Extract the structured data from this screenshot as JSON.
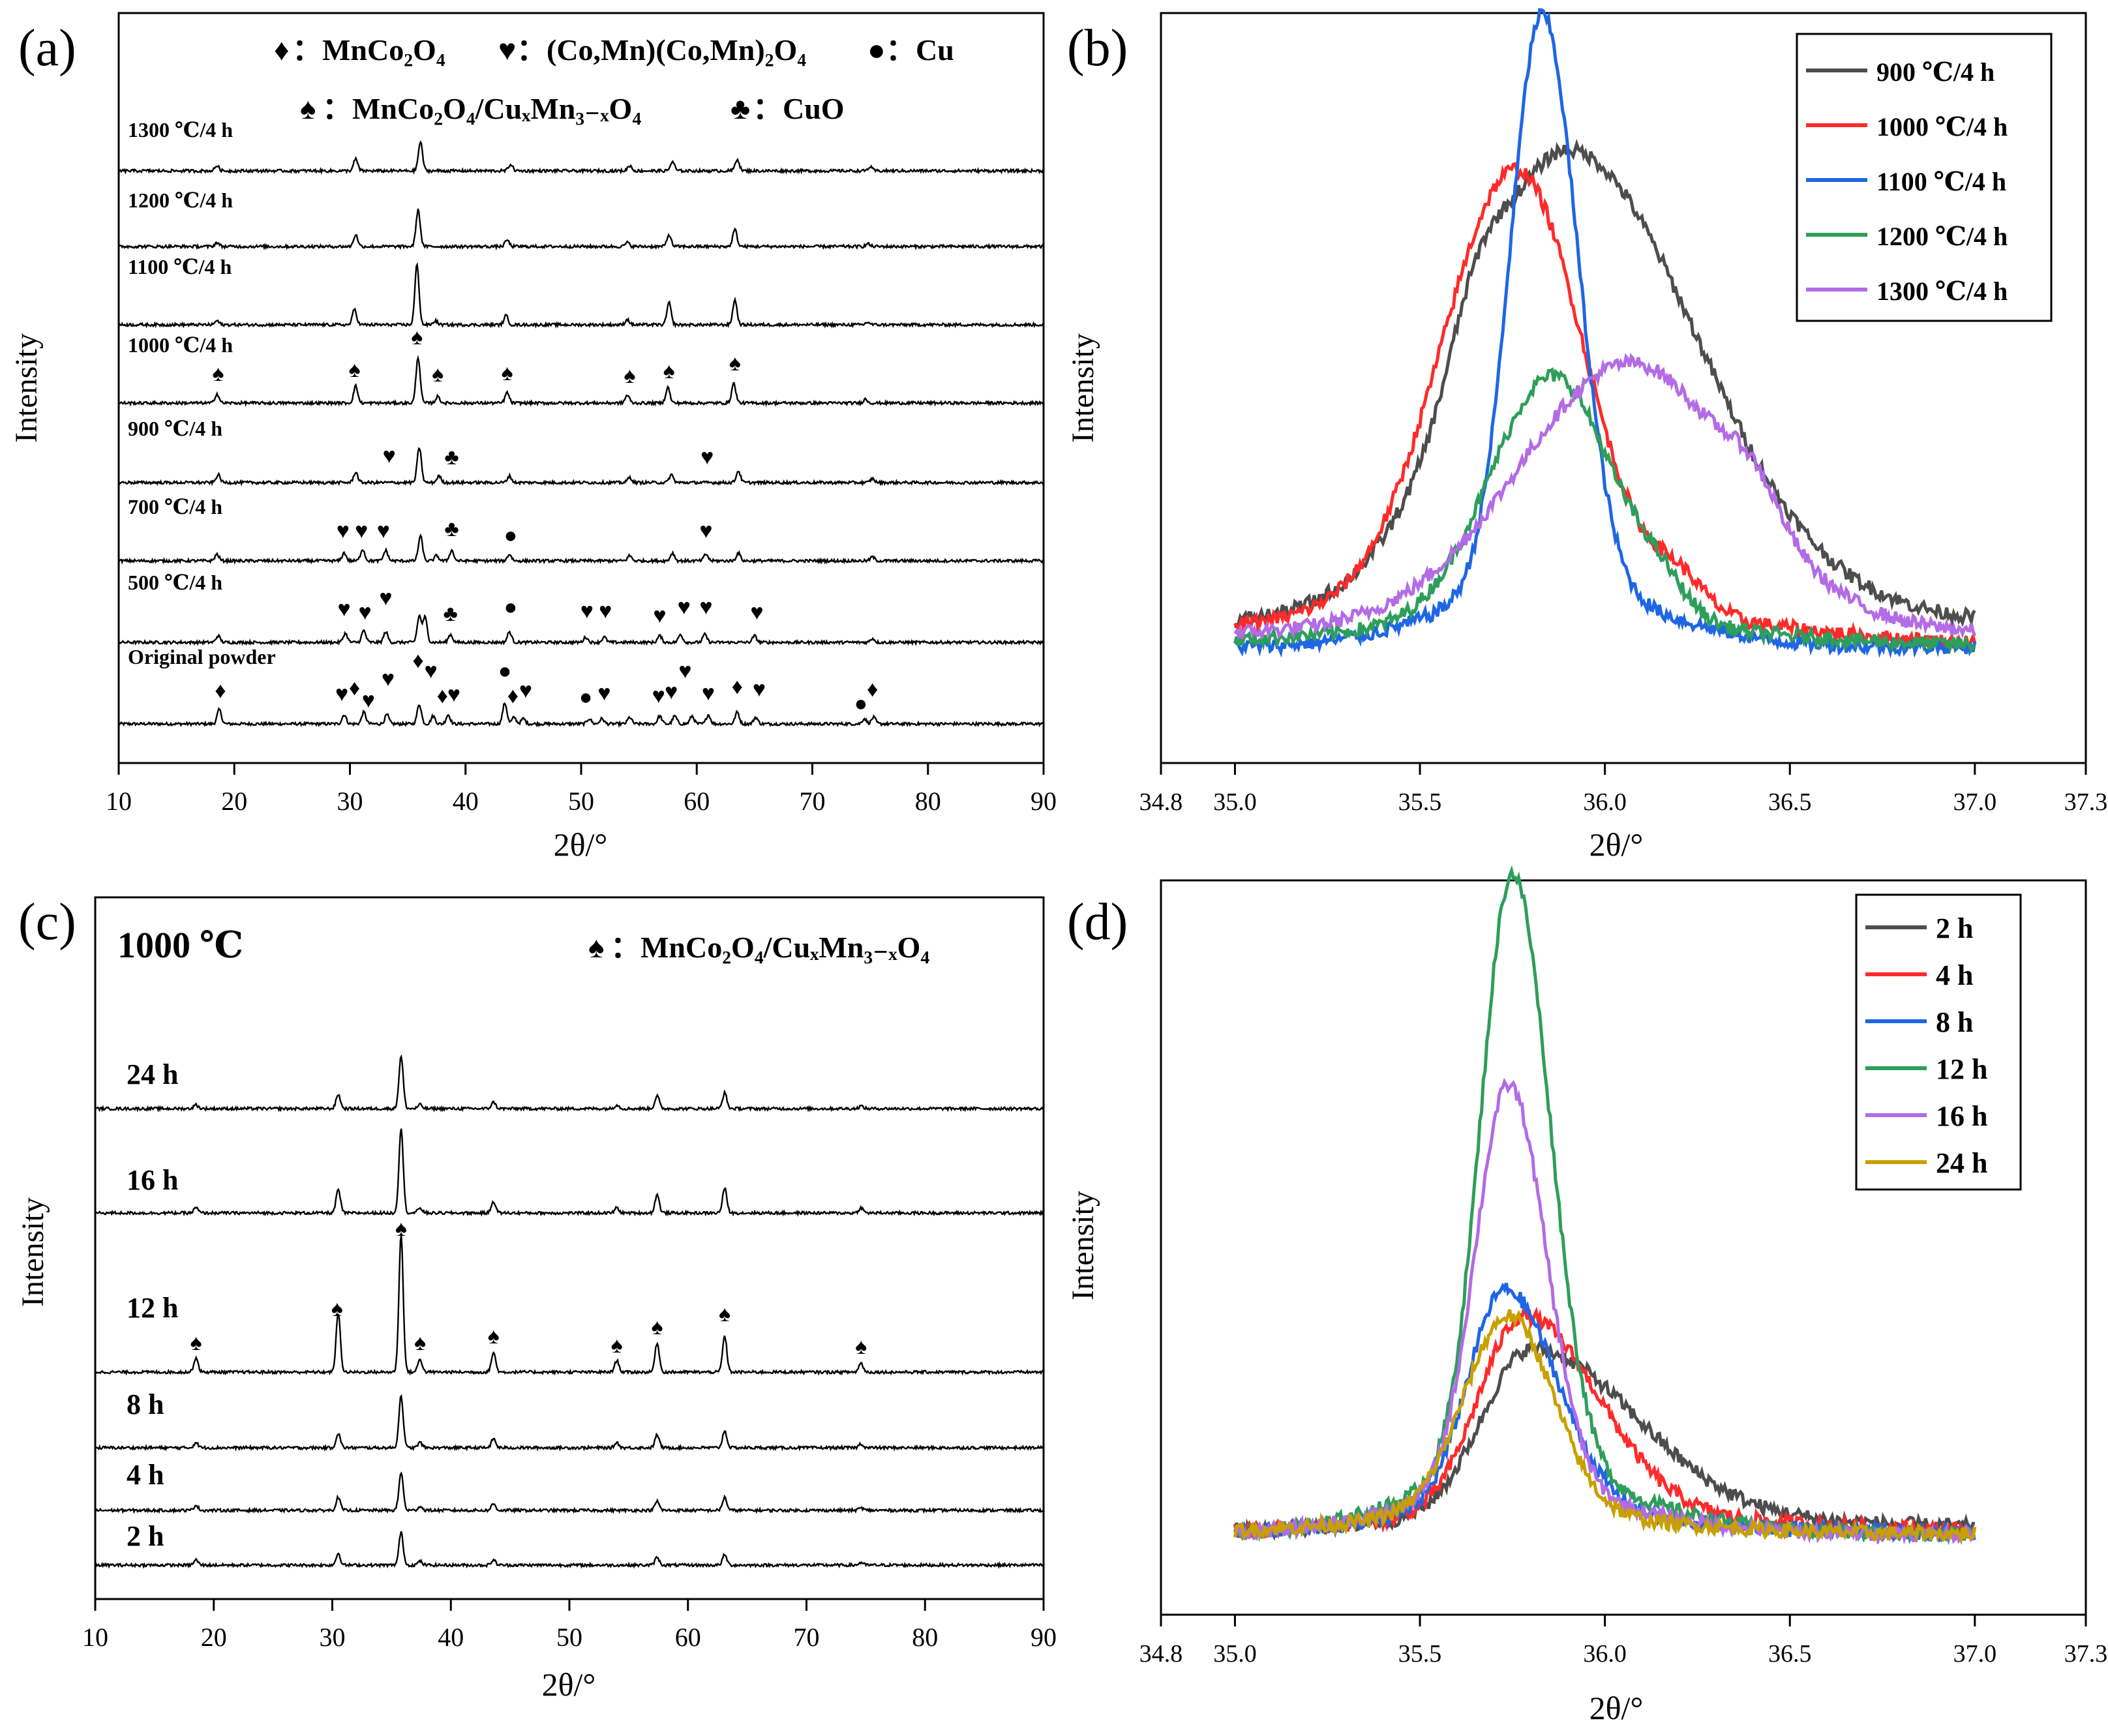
{
  "panels": {
    "a": {
      "letter": "(a)",
      "legend_line1": [
        {
          "sym": "diamond",
          "label": "：MnCo₂O₄"
        },
        {
          "sym": "heart",
          "label": "：(Co,Mn)(Co,Mn)₂O₄"
        },
        {
          "sym": "dot",
          "label": "：Cu"
        }
      ],
      "legend_line2": [
        {
          "sym": "spade",
          "label": "：MnCo₂O₄/CuₓMn₃₋ₓO₄"
        },
        {
          "sym": "club",
          "label": "：CuO"
        }
      ]
    },
    "b": {
      "letter": "(b)"
    },
    "c": {
      "letter": "(c)",
      "temp": "1000 ℃",
      "legend": {
        "sym": "spade",
        "label": "：MnCo₂O₄/CuₓMn₃₋ₓO₄"
      }
    },
    "d": {
      "letter": "(d)"
    }
  },
  "chart_data": [
    {
      "id": "a",
      "type": "line",
      "xlabel": "2θ/°",
      "ylabel": "Intensity",
      "xlim": [
        10,
        90
      ],
      "xticks": [
        "10",
        "20",
        "30",
        "40",
        "50",
        "60",
        "70",
        "80",
        "90"
      ],
      "series": [
        {
          "name": "Original powder",
          "peaks": [
            [
              18.7,
              22
            ],
            [
              29.5,
              14
            ],
            [
              31.2,
              18
            ],
            [
              33.2,
              14
            ],
            [
              36.0,
              30
            ],
            [
              37.2,
              12
            ],
            [
              38.5,
              14
            ],
            [
              43.4,
              32
            ],
            [
              44.2,
              10
            ],
            [
              45.0,
              8
            ],
            [
              50.7,
              8
            ],
            [
              51.8,
              8
            ],
            [
              54.2,
              10
            ],
            [
              56.8,
              12
            ],
            [
              58.1,
              12
            ],
            [
              59.6,
              12
            ],
            [
              61.0,
              14
            ],
            [
              63.5,
              18
            ],
            [
              65.1,
              10
            ],
            [
              74.5,
              8
            ],
            [
              75.3,
              10
            ]
          ]
        },
        {
          "name": "500 ℃/4 h",
          "peaks": [
            [
              18.6,
              10
            ],
            [
              29.6,
              14
            ],
            [
              31.2,
              18
            ],
            [
              33.1,
              16
            ],
            [
              36.0,
              40
            ],
            [
              36.5,
              38
            ],
            [
              38.7,
              12
            ],
            [
              43.8,
              16
            ],
            [
              50.4,
              8
            ],
            [
              52.0,
              8
            ],
            [
              56.8,
              10
            ],
            [
              58.6,
              12
            ],
            [
              60.7,
              12
            ],
            [
              65.0,
              10
            ],
            [
              75.2,
              6
            ]
          ]
        },
        {
          "name": "700 ℃/4 h",
          "peaks": [
            [
              18.5,
              10
            ],
            [
              29.5,
              12
            ],
            [
              31.1,
              18
            ],
            [
              33.1,
              16
            ],
            [
              36.1,
              38
            ],
            [
              37.5,
              8
            ],
            [
              38.8,
              16
            ],
            [
              43.8,
              10
            ],
            [
              54.2,
              8
            ],
            [
              57.9,
              12
            ],
            [
              60.8,
              10
            ],
            [
              63.6,
              12
            ],
            [
              75.2,
              6
            ]
          ]
        },
        {
          "name": "900 ℃/4 h",
          "peaks": [
            [
              18.6,
              12
            ],
            [
              30.5,
              16
            ],
            [
              36.0,
              54
            ],
            [
              37.7,
              10
            ],
            [
              43.8,
              10
            ],
            [
              54.2,
              8
            ],
            [
              57.8,
              12
            ],
            [
              63.6,
              18
            ],
            [
              75.2,
              6
            ]
          ]
        },
        {
          "name": "1000 ℃/4 h",
          "peaks": [
            [
              18.5,
              14
            ],
            [
              30.5,
              26
            ],
            [
              35.9,
              70
            ],
            [
              37.6,
              10
            ],
            [
              43.6,
              16
            ],
            [
              54.0,
              12
            ],
            [
              57.5,
              24
            ],
            [
              63.2,
              30
            ],
            [
              74.6,
              6
            ]
          ]
        },
        {
          "name": "1100 ℃/4 h",
          "peaks": [
            [
              18.5,
              6
            ],
            [
              30.4,
              24
            ],
            [
              35.8,
              92
            ],
            [
              37.4,
              6
            ],
            [
              43.5,
              14
            ],
            [
              54.0,
              8
            ],
            [
              57.6,
              34
            ],
            [
              63.3,
              38
            ],
            [
              74.8,
              4
            ]
          ]
        },
        {
          "name": "1200 ℃/4 h",
          "peaks": [
            [
              18.5,
              6
            ],
            [
              30.5,
              18
            ],
            [
              35.9,
              56
            ],
            [
              43.6,
              10
            ],
            [
              54.0,
              6
            ],
            [
              57.6,
              18
            ],
            [
              63.3,
              26
            ],
            [
              74.8,
              4
            ]
          ]
        },
        {
          "name": "1300 ℃/4 h",
          "peaks": [
            [
              18.5,
              8
            ],
            [
              30.5,
              18
            ],
            [
              36.1,
              44
            ],
            [
              43.9,
              10
            ],
            [
              54.2,
              8
            ],
            [
              57.9,
              14
            ],
            [
              63.5,
              18
            ],
            [
              75.0,
              6
            ]
          ]
        }
      ]
    },
    {
      "id": "b",
      "type": "line",
      "xlabel": "2θ/°",
      "ylabel": "Intensity",
      "xlim": [
        34.8,
        37.3
      ],
      "xticks": [
        "34.8",
        "35.0",
        "35.5",
        "36.0",
        "36.5",
        "37.0",
        "37.3"
      ],
      "series": [
        {
          "name": "900 ℃/4 h",
          "color": "#4d4d4d",
          "center": 35.9,
          "width_l": 0.26,
          "width_r": 0.34,
          "peak": 0.77,
          "shoulder": [
            35.65,
            0.1
          ]
        },
        {
          "name": "1000 ℃/4 h",
          "color": "#ff2a2a",
          "center": 35.76,
          "width_l": 0.2,
          "width_r": 0.18,
          "peak": 0.74,
          "shoulder": [
            36.2,
            0.05
          ]
        },
        {
          "name": "1100 ℃/4 h",
          "color": "#1f66e5",
          "center": 35.83,
          "width_l": 0.085,
          "width_r": 0.095,
          "peak": 0.98,
          "shoulder": null
        },
        {
          "name": "1200 ℃/4 h",
          "color": "#2e9e5b",
          "center": 35.86,
          "width_l": 0.17,
          "width_r": 0.16,
          "peak": 0.42,
          "shoulder": [
            36.15,
            0.04
          ]
        },
        {
          "name": "1300 ℃/4 h",
          "color": "#b36be6",
          "center": 36.07,
          "width_l": 0.3,
          "width_r": 0.28,
          "peak": 0.44,
          "shoulder": [
            36.4,
            0.06
          ]
        }
      ]
    },
    {
      "id": "c",
      "type": "line",
      "xlabel": "2θ/°",
      "ylabel": "Intensity",
      "xlim": [
        10,
        90
      ],
      "xticks": [
        "10",
        "20",
        "30",
        "40",
        "50",
        "60",
        "70",
        "80",
        "90"
      ],
      "series": [
        {
          "name": "2 h",
          "peaks": [
            [
              18.5,
              8
            ],
            [
              30.5,
              18
            ],
            [
              35.8,
              50
            ],
            [
              37.4,
              6
            ],
            [
              43.6,
              8
            ],
            [
              57.4,
              12
            ],
            [
              63.1,
              16
            ],
            [
              74.6,
              4
            ]
          ]
        },
        {
          "name": "4 h",
          "peaks": [
            [
              18.5,
              8
            ],
            [
              30.5,
              20
            ],
            [
              35.8,
              58
            ],
            [
              37.4,
              6
            ],
            [
              43.6,
              10
            ],
            [
              57.4,
              14
            ],
            [
              63.1,
              20
            ],
            [
              74.6,
              4
            ]
          ]
        },
        {
          "name": "8 h",
          "peaks": [
            [
              18.5,
              8
            ],
            [
              30.5,
              22
            ],
            [
              35.8,
              80
            ],
            [
              37.4,
              8
            ],
            [
              43.6,
              14
            ],
            [
              54.0,
              8
            ],
            [
              57.4,
              20
            ],
            [
              63.1,
              26
            ],
            [
              74.6,
              6
            ]
          ]
        },
        {
          "name": "12 h",
          "peaks": [
            [
              18.5,
              22
            ],
            [
              30.5,
              90
            ],
            [
              35.8,
              210
            ],
            [
              37.4,
              20
            ],
            [
              43.6,
              30
            ],
            [
              54.0,
              18
            ],
            [
              57.4,
              45
            ],
            [
              63.1,
              55
            ],
            [
              74.6,
              14
            ]
          ]
        },
        {
          "name": "16 h",
          "peaks": [
            [
              18.5,
              8
            ],
            [
              30.5,
              36
            ],
            [
              35.8,
              130
            ],
            [
              37.4,
              8
            ],
            [
              43.6,
              18
            ],
            [
              54.0,
              8
            ],
            [
              57.4,
              28
            ],
            [
              63.1,
              38
            ],
            [
              74.6,
              8
            ]
          ]
        },
        {
          "name": "24 h",
          "peaks": [
            [
              18.5,
              6
            ],
            [
              30.5,
              22
            ],
            [
              35.8,
              80
            ],
            [
              37.4,
              6
            ],
            [
              43.6,
              10
            ],
            [
              54.0,
              6
            ],
            [
              57.4,
              20
            ],
            [
              63.1,
              24
            ],
            [
              74.6,
              4
            ]
          ]
        }
      ]
    },
    {
      "id": "d",
      "type": "line",
      "xlabel": "2θ/°",
      "ylabel": "Intensity",
      "xlim": [
        34.8,
        37.3
      ],
      "xticks": [
        "34.8",
        "35.0",
        "35.5",
        "36.0",
        "36.5",
        "37.0",
        "37.3"
      ],
      "series": [
        {
          "name": "2 h",
          "color": "#4d4d4d",
          "center": 35.8,
          "width_l": 0.13,
          "width_r": 0.28,
          "peak": 0.28
        },
        {
          "name": "4 h",
          "color": "#ff2a2a",
          "center": 35.78,
          "width_l": 0.12,
          "width_r": 0.2,
          "peak": 0.33
        },
        {
          "name": "8 h",
          "color": "#1f66e5",
          "center": 35.73,
          "width_l": 0.1,
          "width_r": 0.14,
          "peak": 0.37
        },
        {
          "name": "12 h",
          "color": "#2e9e5b",
          "center": 35.75,
          "width_l": 0.085,
          "width_r": 0.1,
          "peak": 1.0
        },
        {
          "name": "16 h",
          "color": "#b36be6",
          "center": 35.74,
          "width_l": 0.09,
          "width_r": 0.1,
          "peak": 0.68
        },
        {
          "name": "24 h",
          "color": "#c8a000",
          "center": 35.74,
          "width_l": 0.12,
          "width_r": 0.12,
          "peak": 0.33
        }
      ]
    }
  ]
}
